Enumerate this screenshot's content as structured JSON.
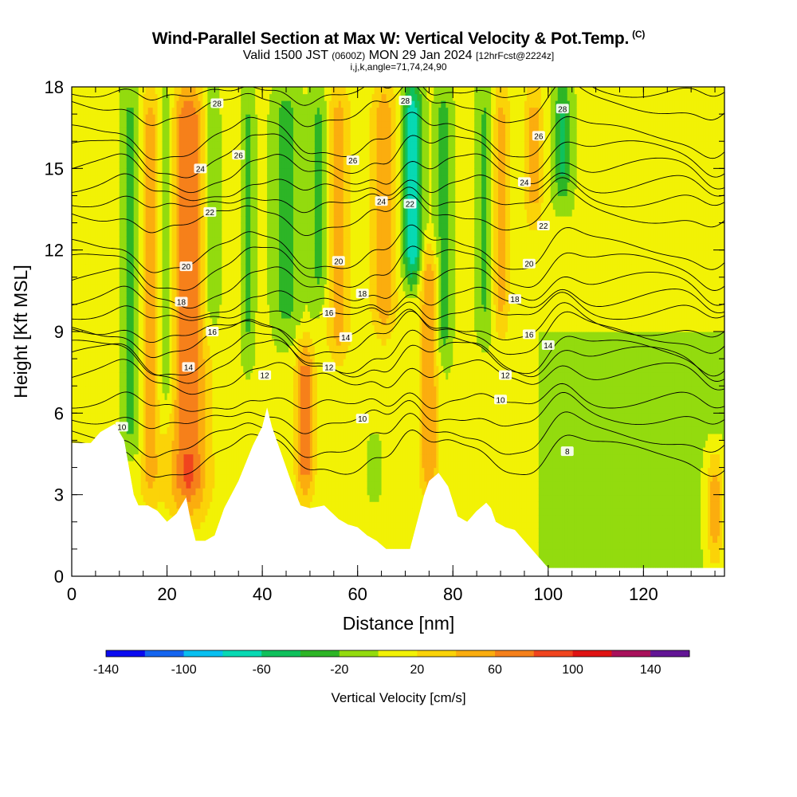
{
  "title": {
    "main": "Wind-Parallel Section at Max W: Vertical Velocity & Pot.Temp.",
    "tag": "(C)",
    "valid_a": "Valid 1500 JST",
    "valid_utc": "(0600Z)",
    "valid_b": "MON 29 Jan 2024",
    "fcst": "[12hrFcst@2224z]",
    "params": "i,j,k,angle=71,74,24,90"
  },
  "chart_data": {
    "type": "heatmap",
    "xlabel": "Distance [nm]",
    "ylabel": "Height [Kft MSL]",
    "xlim": [
      0,
      137
    ],
    "ylim": [
      0,
      18
    ],
    "x_ticks": [
      0,
      20,
      40,
      60,
      80,
      100,
      120
    ],
    "y_ticks": [
      0,
      3,
      6,
      9,
      12,
      15,
      18
    ],
    "colorbar": {
      "label": "Vertical Velocity [cm/s]",
      "range": [
        -140,
        160
      ],
      "step": 20,
      "tick_labels": [
        -140,
        -100,
        -60,
        -20,
        20,
        60,
        100,
        140
      ],
      "colors": [
        "#0a0aef",
        "#1565ef",
        "#08bff0",
        "#07d9b3",
        "#0fc15c",
        "#2db526",
        "#93db0e",
        "#f2f205",
        "#fbd308",
        "#fbad0e",
        "#f6801a",
        "#f0441e",
        "#df1313",
        "#a8115b",
        "#621595"
      ]
    },
    "terrain_kft": [
      [
        0,
        4.9
      ],
      [
        4,
        4.9
      ],
      [
        6,
        5.3
      ],
      [
        9,
        5.6
      ],
      [
        11,
        5.0
      ],
      [
        12,
        4.0
      ],
      [
        13,
        3.0
      ],
      [
        14,
        2.6
      ],
      [
        16,
        2.6
      ],
      [
        18,
        2.4
      ],
      [
        20,
        2.0
      ],
      [
        22,
        2.3
      ],
      [
        24,
        2.9
      ],
      [
        25,
        2.0
      ],
      [
        26,
        1.3
      ],
      [
        28,
        1.3
      ],
      [
        30,
        1.5
      ],
      [
        32,
        2.5
      ],
      [
        35,
        3.5
      ],
      [
        38,
        4.8
      ],
      [
        40,
        5.5
      ],
      [
        41,
        6.2
      ],
      [
        42,
        5.5
      ],
      [
        44,
        4.5
      ],
      [
        46,
        3.5
      ],
      [
        48,
        2.6
      ],
      [
        50,
        2.5
      ],
      [
        53,
        2.6
      ],
      [
        56,
        2.1
      ],
      [
        58,
        1.9
      ],
      [
        60,
        1.8
      ],
      [
        62,
        1.5
      ],
      [
        64,
        1.3
      ],
      [
        66,
        1.0
      ],
      [
        71,
        1.0
      ],
      [
        74,
        3.0
      ],
      [
        75,
        3.5
      ],
      [
        77,
        3.8
      ],
      [
        79,
        3.3
      ],
      [
        81,
        2.2
      ],
      [
        83,
        2.0
      ],
      [
        85,
        2.4
      ],
      [
        87,
        2.7
      ],
      [
        88,
        2.5
      ],
      [
        89,
        2.0
      ],
      [
        91,
        1.8
      ],
      [
        93,
        1.7
      ],
      [
        94,
        1.5
      ],
      [
        96,
        1.1
      ],
      [
        98,
        0.7
      ],
      [
        100,
        0.3
      ],
      [
        137,
        0.3
      ]
    ],
    "updrafts": [
      {
        "x": 24.5,
        "w": 6,
        "y0": 2.5,
        "y1": 18,
        "max": 75
      },
      {
        "x": 16.5,
        "w": 3,
        "y0": 3.0,
        "y1": 18,
        "max": 45
      },
      {
        "x": 49,
        "w": 3,
        "y0": 3.0,
        "y1": 8.5,
        "max": 70
      },
      {
        "x": 56,
        "w": 4,
        "y0": 8.0,
        "y1": 18,
        "max": 45
      },
      {
        "x": 65.5,
        "w": 4,
        "y0": 9.0,
        "y1": 18,
        "max": 55
      },
      {
        "x": 75,
        "w": 3,
        "y0": 3.0,
        "y1": 12,
        "max": 55
      },
      {
        "x": 90,
        "w": 3,
        "y0": 9.0,
        "y1": 18,
        "max": 45
      },
      {
        "x": 97,
        "w": 3,
        "y0": 13.0,
        "y1": 18,
        "max": 45
      },
      {
        "x": 135,
        "w": 3,
        "y0": 0.5,
        "y1": 4.5,
        "max": 55
      }
    ],
    "downdrafts": [
      {
        "x": 12.5,
        "w": 3,
        "y0": 4.5,
        "y1": 18,
        "min": -30
      },
      {
        "x": 20,
        "w": 3,
        "y0": 6.0,
        "y1": 18,
        "min": -30
      },
      {
        "x": 29,
        "w": 3,
        "y0": 9.0,
        "y1": 18,
        "min": -30
      },
      {
        "x": 37,
        "w": 2,
        "y0": 8.0,
        "y1": 18,
        "min": -25
      },
      {
        "x": 45,
        "w": 4,
        "y0": 9.0,
        "y1": 18,
        "min": -35
      },
      {
        "x": 52,
        "w": 3,
        "y0": 10.0,
        "y1": 18,
        "min": -30
      },
      {
        "x": 71.5,
        "w": 3,
        "y0": 11.0,
        "y1": 18,
        "min": -85
      },
      {
        "x": 78,
        "w": 2.5,
        "y0": 8.0,
        "y1": 18,
        "min": -35
      },
      {
        "x": 87,
        "w": 3,
        "y0": 9.0,
        "y1": 18,
        "min": -30
      },
      {
        "x": 103,
        "w": 3,
        "y0": 14.0,
        "y1": 18,
        "min": -50
      },
      {
        "x": 63.5,
        "w": 2,
        "y0": 3.5,
        "y1": 4.5,
        "min": -40
      }
    ],
    "potential_temperature_contours": {
      "unit": "C",
      "interval": 1,
      "labels": [
        {
          "value": 28,
          "x": 30.5,
          "y": 17.4
        },
        {
          "value": 28,
          "x": 70,
          "y": 17.5
        },
        {
          "value": 28,
          "x": 103,
          "y": 17.2
        },
        {
          "value": 26,
          "x": 35,
          "y": 15.5
        },
        {
          "value": 26,
          "x": 59,
          "y": 15.3
        },
        {
          "value": 26,
          "x": 98,
          "y": 16.2
        },
        {
          "value": 24,
          "x": 27,
          "y": 15.0
        },
        {
          "value": 24,
          "x": 65,
          "y": 13.8
        },
        {
          "value": 24,
          "x": 95,
          "y": 14.5
        },
        {
          "value": 22,
          "x": 29,
          "y": 13.4
        },
        {
          "value": 22,
          "x": 71,
          "y": 13.7
        },
        {
          "value": 22,
          "x": 99,
          "y": 12.9
        },
        {
          "value": 20,
          "x": 24,
          "y": 11.4
        },
        {
          "value": 20,
          "x": 56,
          "y": 11.6
        },
        {
          "value": 20,
          "x": 96,
          "y": 11.5
        },
        {
          "value": 18,
          "x": 23,
          "y": 10.1
        },
        {
          "value": 18,
          "x": 61,
          "y": 10.4
        },
        {
          "value": 18,
          "x": 93,
          "y": 10.2
        },
        {
          "value": 16,
          "x": 29.5,
          "y": 9.0
        },
        {
          "value": 16,
          "x": 54,
          "y": 9.7
        },
        {
          "value": 16,
          "x": 96,
          "y": 8.9
        },
        {
          "value": 14,
          "x": 24.5,
          "y": 7.7
        },
        {
          "value": 14,
          "x": 57.5,
          "y": 8.8
        },
        {
          "value": 14,
          "x": 100,
          "y": 8.5
        },
        {
          "value": 12,
          "x": 40.5,
          "y": 7.4
        },
        {
          "value": 12,
          "x": 54,
          "y": 7.7
        },
        {
          "value": 12,
          "x": 91,
          "y": 7.4
        },
        {
          "value": 10,
          "x": 10.5,
          "y": 5.5
        },
        {
          "value": 10,
          "x": 61,
          "y": 5.8
        },
        {
          "value": 10,
          "x": 90,
          "y": 6.5
        },
        {
          "value": 8,
          "x": 104,
          "y": 4.6
        }
      ]
    }
  }
}
